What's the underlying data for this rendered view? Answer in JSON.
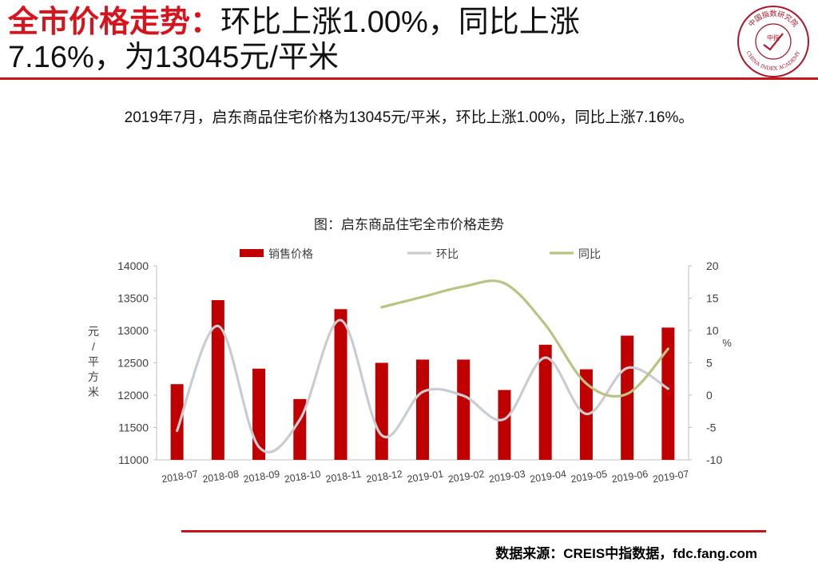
{
  "header": {
    "title_red": "全市价格走势：",
    "title_line1_rest": "环比上涨1.00%，同比上涨",
    "title_line2": "7.16%，为13045元/平米"
  },
  "logo": {
    "top_text": "中国指数研究院",
    "center_text": "中指",
    "bottom_text": "CHINA INDEX ACADEMY",
    "color": "#b0162a"
  },
  "summary": "2019年7月，启东商品住宅价格为13045元/平米，环比上涨1.00%，同比上涨7.16%。",
  "source": "数据来源：CREIS中指数据，fdc.fang.com",
  "chart_data": {
    "type": "bar",
    "title": "图：启东商品住宅全市价格走势",
    "categories": [
      "2018-07",
      "2018-08",
      "2018-09",
      "2018-10",
      "2018-11",
      "2018-12",
      "2019-01",
      "2019-02",
      "2019-03",
      "2019-04",
      "2019-05",
      "2019-06",
      "2019-07"
    ],
    "ylabel": "元/平方米",
    "y2label": "%",
    "ylim": [
      11000,
      14000
    ],
    "y2lim": [
      -10,
      20
    ],
    "yticks": [
      11000,
      11500,
      12000,
      12500,
      13000,
      13500,
      14000
    ],
    "y2ticks": [
      -10,
      -5,
      0,
      5,
      10,
      15,
      20
    ],
    "legend_position": "top",
    "grid": false,
    "series": [
      {
        "name": "销售价格",
        "type": "bar",
        "axis": "left",
        "color": "#c00000",
        "values": [
          12170,
          13470,
          12410,
          11940,
          13330,
          12500,
          12550,
          12550,
          12080,
          12780,
          12400,
          12920,
          13045
        ]
      },
      {
        "name": "环比",
        "type": "line",
        "axis": "right",
        "color": "#c9cdd1",
        "values": [
          -5.5,
          10.7,
          -8.0,
          -3.8,
          11.6,
          -6.2,
          0.5,
          -0.1,
          -3.7,
          5.8,
          -2.9,
          4.2,
          1.0
        ]
      },
      {
        "name": "同比",
        "type": "line",
        "axis": "right",
        "color": "#bcc283",
        "values": [
          null,
          null,
          null,
          null,
          null,
          13.6,
          15.2,
          16.8,
          17.3,
          10.9,
          1.8,
          0.2,
          7.16
        ]
      }
    ]
  }
}
